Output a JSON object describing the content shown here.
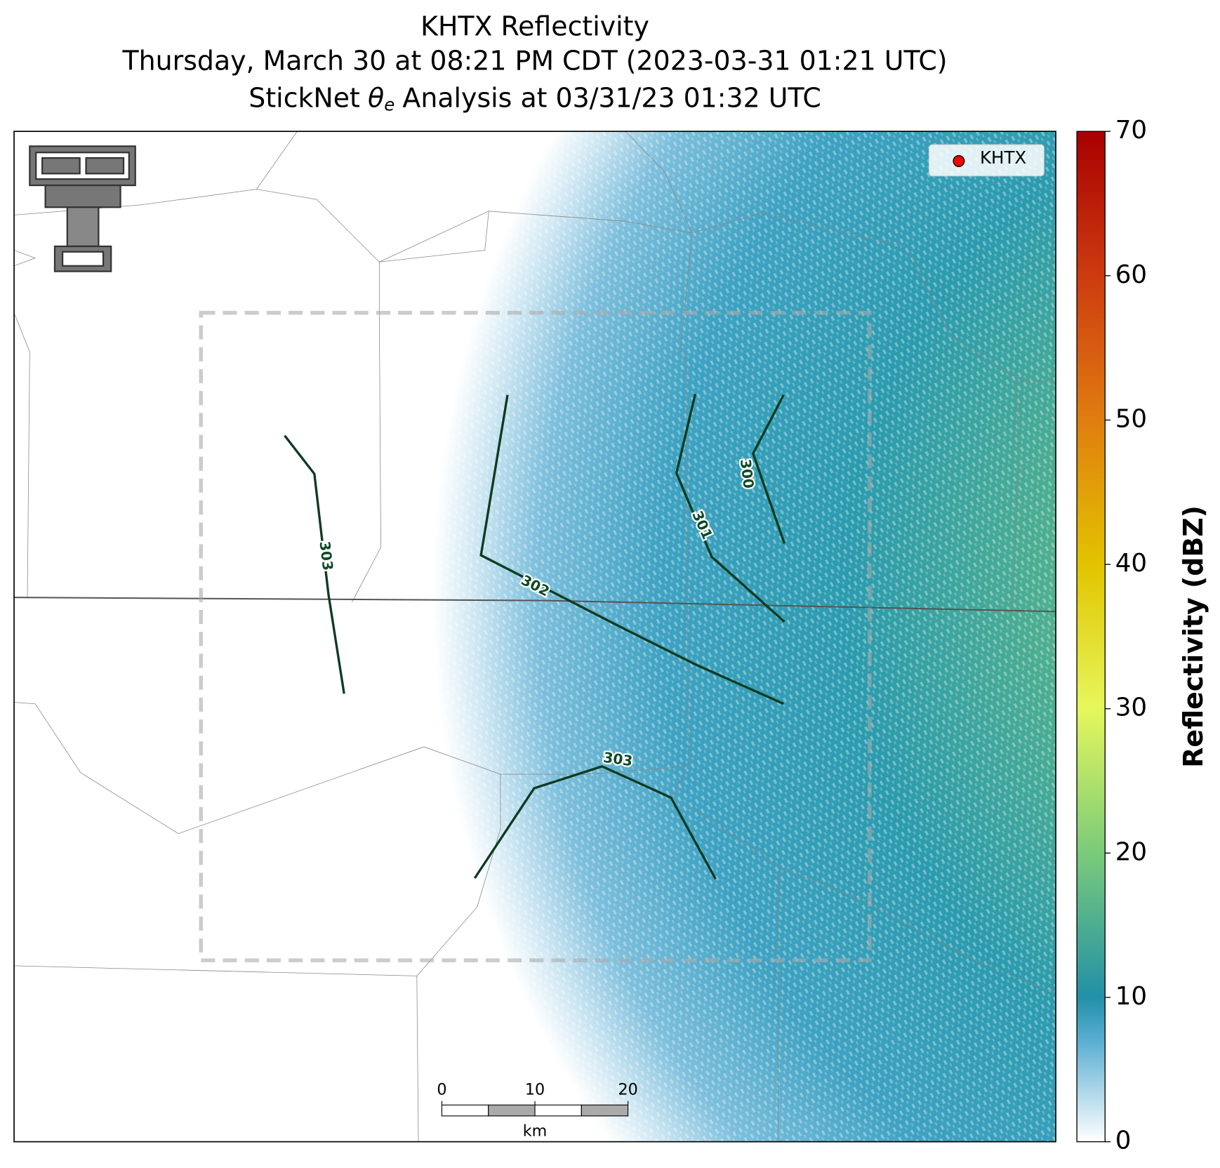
{
  "header": {
    "title": "KHTX Reflectivity",
    "subtitle": "Thursday, March 30 at 08:21 PM CDT (2023-03-31 01:21 UTC)",
    "analysis": {
      "prefix": "StickNet",
      "symbol": "θ",
      "subscript": "e",
      "suffix": "Analysis at 03/31/23 01:32 UTC"
    }
  },
  "legend": {
    "label": "KHTX",
    "color": "#ff0000"
  },
  "colorbar": {
    "label": "Reflectivity (dBZ)",
    "lim": [
      0,
      70
    ],
    "ticks": [
      0,
      10,
      20,
      30,
      40,
      50,
      60,
      70
    ]
  },
  "contours": [
    {
      "label": "303"
    },
    {
      "label": "302"
    },
    {
      "label": "301"
    },
    {
      "label": "300"
    },
    {
      "label": "303"
    }
  ],
  "scalebar": {
    "unit": "km",
    "lim": [
      0,
      20
    ],
    "ticks": [
      0,
      10,
      20
    ]
  }
}
